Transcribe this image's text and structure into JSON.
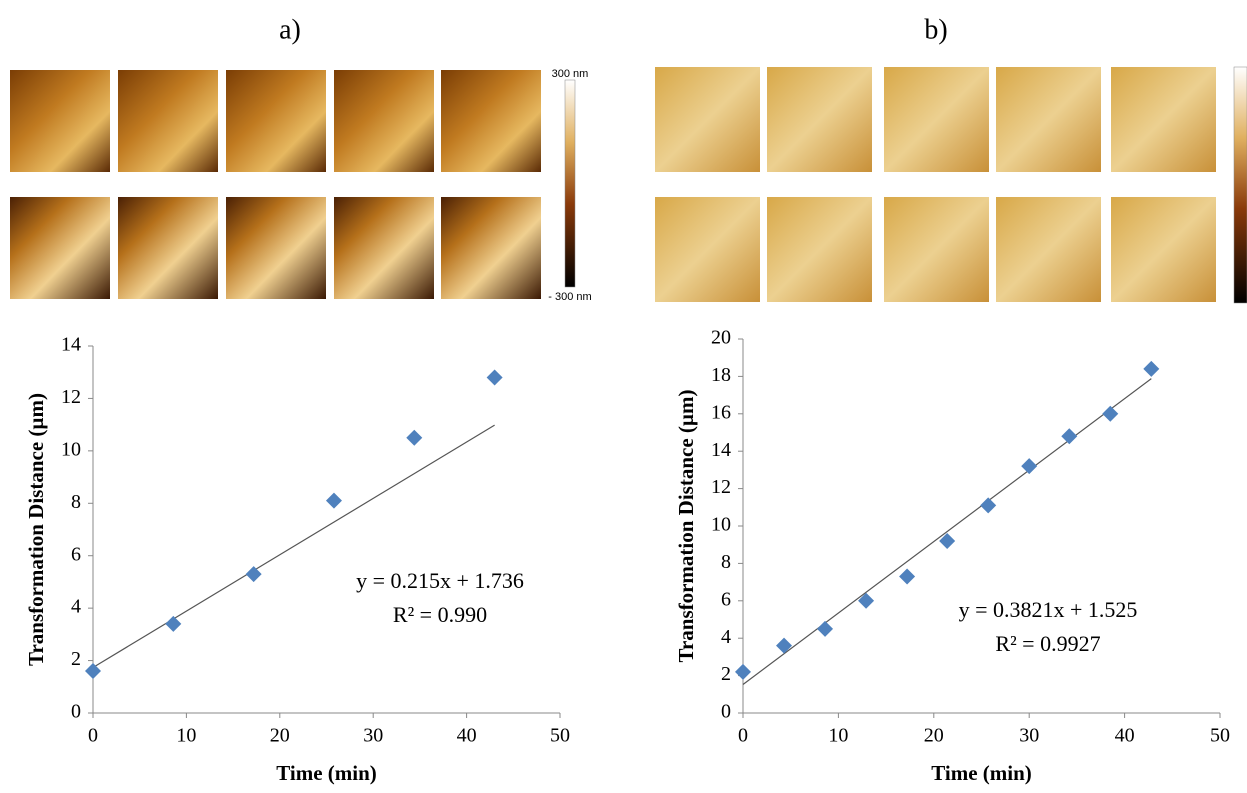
{
  "chart_data": [
    {
      "type": "scatter",
      "label": "a)",
      "colorbar": {
        "max_label": "300 nm",
        "min_label": "- 300 nm"
      },
      "x_label": "Time (min)",
      "y_label": "Transformation  Distance (µm)",
      "x": [
        0,
        8.6,
        17.2,
        25.8,
        34.4,
        43
      ],
      "values": [
        1.6,
        3.4,
        5.3,
        8.1,
        10.5,
        12.8
      ],
      "color": "#4f81bd",
      "trendline": {
        "slope": 0.215,
        "intercept": 1.736,
        "label": "y = 0.215x + 1.736",
        "r2_label": "R² = 0.990"
      },
      "xlim": [
        0,
        50
      ],
      "xticks": [
        0,
        10,
        20,
        30,
        40,
        50
      ],
      "ylim": [
        0,
        14
      ],
      "yticks": [
        0,
        2,
        4,
        6,
        8,
        10,
        12,
        14
      ]
    },
    {
      "type": "scatter",
      "label": "b)",
      "x_label": "Time (min)",
      "y_label": "Transformation  Distance (µm)",
      "x": [
        0,
        4.3,
        8.6,
        12.9,
        17.2,
        21.4,
        25.7,
        30,
        34.2,
        38.5,
        42.8
      ],
      "values": [
        2.2,
        3.6,
        4.5,
        6.0,
        7.3,
        9.2,
        11.1,
        13.2,
        14.8,
        16.0,
        18.4
      ],
      "color": "#4f81bd",
      "trendline": {
        "slope": 0.3821,
        "intercept": 1.525,
        "label": "y = 0.3821x + 1.525",
        "r2_label": "R² = 0.9927"
      },
      "xlim": [
        0,
        50
      ],
      "xticks": [
        0,
        10,
        20,
        30,
        40,
        50
      ],
      "ylim": [
        0,
        20
      ],
      "yticks": [
        0,
        2,
        4,
        6,
        8,
        10,
        12,
        14,
        16,
        18,
        20
      ]
    }
  ]
}
